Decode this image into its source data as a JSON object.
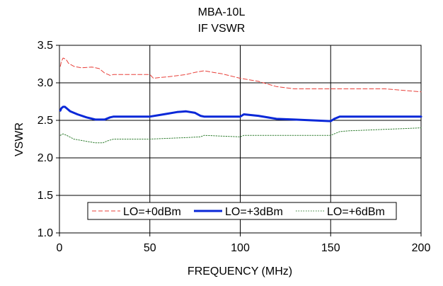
{
  "chart_data": {
    "type": "line",
    "title": "MBA-10L",
    "subtitle": "IF VSWR",
    "xlabel": "FREQUENCY (MHz)",
    "ylabel": "VSWR",
    "xlim": [
      0,
      200
    ],
    "ylim": [
      1.0,
      3.5
    ],
    "x_ticks": [
      0,
      50,
      100,
      150,
      200
    ],
    "x_tick_labels": [
      "0",
      "50",
      "100",
      "150",
      "200"
    ],
    "y_ticks": [
      1.0,
      1.5,
      2.0,
      2.5,
      3.0,
      3.5
    ],
    "y_tick_labels": [
      "1.0",
      "1.5",
      "2.0",
      "2.5",
      "3.0",
      "3.5"
    ],
    "grid": "major",
    "legend_position": "lower-center",
    "series": [
      {
        "name": "LO=+0dBm",
        "color": "#e8403a",
        "style": "dashed",
        "x": [
          0.5,
          1,
          2,
          3,
          4,
          5,
          8,
          12,
          18,
          22,
          25,
          28,
          30,
          40,
          50,
          52,
          55,
          60,
          70,
          75,
          80,
          85,
          90,
          100,
          110,
          120,
          130,
          140,
          150,
          160,
          170,
          180,
          190,
          200
        ],
        "y": [
          3.22,
          3.28,
          3.33,
          3.32,
          3.3,
          3.26,
          3.22,
          3.2,
          3.21,
          3.19,
          3.13,
          3.1,
          3.11,
          3.11,
          3.11,
          3.06,
          3.07,
          3.08,
          3.11,
          3.14,
          3.16,
          3.14,
          3.12,
          3.06,
          3.02,
          2.95,
          2.92,
          2.92,
          2.92,
          2.92,
          2.92,
          2.92,
          2.9,
          2.88
        ]
      },
      {
        "name": "LO=+3dBm",
        "color": "#0a28d8",
        "style": "solid",
        "x": [
          0.5,
          1,
          2,
          3,
          4,
          6,
          10,
          15,
          20,
          25,
          28,
          30,
          40,
          50,
          55,
          60,
          65,
          70,
          75,
          78,
          80,
          90,
          100,
          102,
          110,
          120,
          130,
          140,
          150,
          152,
          155,
          160,
          170,
          180,
          190,
          200
        ],
        "y": [
          2.63,
          2.66,
          2.68,
          2.68,
          2.66,
          2.62,
          2.58,
          2.54,
          2.51,
          2.51,
          2.54,
          2.55,
          2.55,
          2.55,
          2.57,
          2.59,
          2.61,
          2.62,
          2.6,
          2.56,
          2.55,
          2.55,
          2.55,
          2.58,
          2.56,
          2.52,
          2.51,
          2.5,
          2.49,
          2.52,
          2.55,
          2.55,
          2.55,
          2.55,
          2.55,
          2.55
        ]
      },
      {
        "name": "LO=+6dBm",
        "color": "#2f7d2f",
        "style": "dotted",
        "x": [
          0.5,
          2,
          4,
          8,
          15,
          20,
          24,
          27,
          30,
          40,
          50,
          60,
          70,
          78,
          80,
          90,
          100,
          102,
          110,
          120,
          130,
          140,
          150,
          152,
          155,
          160,
          170,
          180,
          190,
          200
        ],
        "y": [
          2.3,
          2.32,
          2.3,
          2.25,
          2.22,
          2.2,
          2.2,
          2.23,
          2.25,
          2.25,
          2.25,
          2.26,
          2.27,
          2.28,
          2.3,
          2.29,
          2.28,
          2.3,
          2.3,
          2.3,
          2.3,
          2.3,
          2.3,
          2.32,
          2.35,
          2.36,
          2.37,
          2.38,
          2.39,
          2.4
        ]
      }
    ]
  }
}
